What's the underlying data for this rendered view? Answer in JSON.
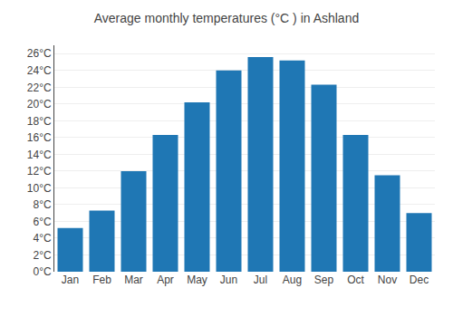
{
  "chart_data": {
    "type": "bar",
    "title": "Average monthly temperatures (°C ) in Ashland",
    "categories": [
      "Jan",
      "Feb",
      "Mar",
      "Apr",
      "May",
      "Jun",
      "Jul",
      "Aug",
      "Sep",
      "Oct",
      "Nov",
      "Dec"
    ],
    "values": [
      5.2,
      7.3,
      12.0,
      16.3,
      20.2,
      24.0,
      25.6,
      25.2,
      22.3,
      16.3,
      11.5,
      7.0
    ],
    "ylim": [
      0,
      27
    ],
    "yticks": [
      {
        "value": 0,
        "label": "0°C"
      },
      {
        "value": 2,
        "label": "2°C"
      },
      {
        "value": 4,
        "label": "4°C"
      },
      {
        "value": 6,
        "label": "6°C"
      },
      {
        "value": 8,
        "label": "8°C"
      },
      {
        "value": 10,
        "label": "10°C"
      },
      {
        "value": 12,
        "label": "12°C"
      },
      {
        "value": 14,
        "label": "14°C"
      },
      {
        "value": 16,
        "label": "16°C"
      },
      {
        "value": 18,
        "label": "18°C"
      },
      {
        "value": 20,
        "label": "20°C"
      },
      {
        "value": 22,
        "label": "22°C"
      },
      {
        "value": 24,
        "label": "24°C"
      },
      {
        "value": 26,
        "label": "26°C"
      }
    ],
    "grid": true
  }
}
